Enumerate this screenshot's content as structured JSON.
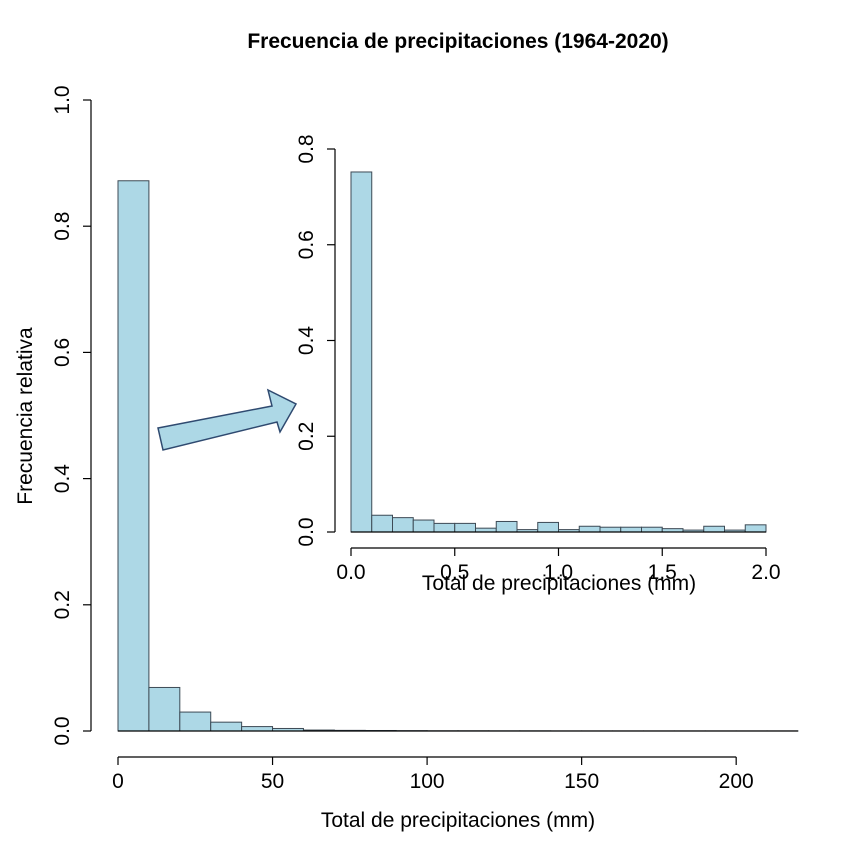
{
  "chart_data": [
    {
      "type": "bar",
      "title": "Frecuencia de precipitaciones (1964-2020)",
      "xlabel": "Total de precipitaciones (mm)",
      "ylabel": "Frecuencia relativa",
      "xlim": [
        0,
        220
      ],
      "ylim": [
        0,
        1.0
      ],
      "xticks": [
        "0",
        "50",
        "100",
        "150",
        "200"
      ],
      "yticks": [
        "0.0",
        "0.2",
        "0.4",
        "0.6",
        "0.8",
        "1.0"
      ],
      "bin_width": 10,
      "x": [
        0,
        10,
        20,
        30,
        40,
        50,
        60,
        70,
        80,
        90,
        100,
        110,
        120,
        130,
        140,
        150,
        160,
        170,
        180,
        190,
        200,
        210
      ],
      "values": [
        0.872,
        0.069,
        0.03,
        0.014,
        0.007,
        0.004,
        0.0015,
        0.001,
        0.0008,
        0.0005,
        0.0003,
        0.0003,
        0.0002,
        0.0002,
        0.0001,
        0.0001,
        0.0001,
        0.0001,
        0.0001,
        0.0001,
        0.0001,
        0.0001
      ],
      "bar_color": "#add8e6",
      "grid": false
    },
    {
      "type": "bar",
      "title": "",
      "xlabel": "Total de precipitaciones (mm)",
      "ylabel": "",
      "xlim": [
        0,
        2.0
      ],
      "ylim": [
        0,
        0.8
      ],
      "xticks": [
        "0.0",
        "0.5",
        "1.0",
        "1.5",
        "2.0"
      ],
      "yticks": [
        "0.0",
        "0.2",
        "0.4",
        "0.6",
        "0.8"
      ],
      "bin_width": 0.1,
      "x": [
        0.0,
        0.1,
        0.2,
        0.3,
        0.4,
        0.5,
        0.6,
        0.7,
        0.8,
        0.9,
        1.0,
        1.1,
        1.2,
        1.3,
        1.4,
        1.5,
        1.6,
        1.7,
        1.8,
        1.9
      ],
      "values": [
        0.752,
        0.035,
        0.03,
        0.025,
        0.018,
        0.018,
        0.008,
        0.022,
        0.005,
        0.02,
        0.005,
        0.012,
        0.01,
        0.01,
        0.01,
        0.007,
        0.004,
        0.012,
        0.004,
        0.015
      ],
      "bar_color": "#add8e6",
      "grid": false
    }
  ],
  "arrow_color": "#add8e6"
}
